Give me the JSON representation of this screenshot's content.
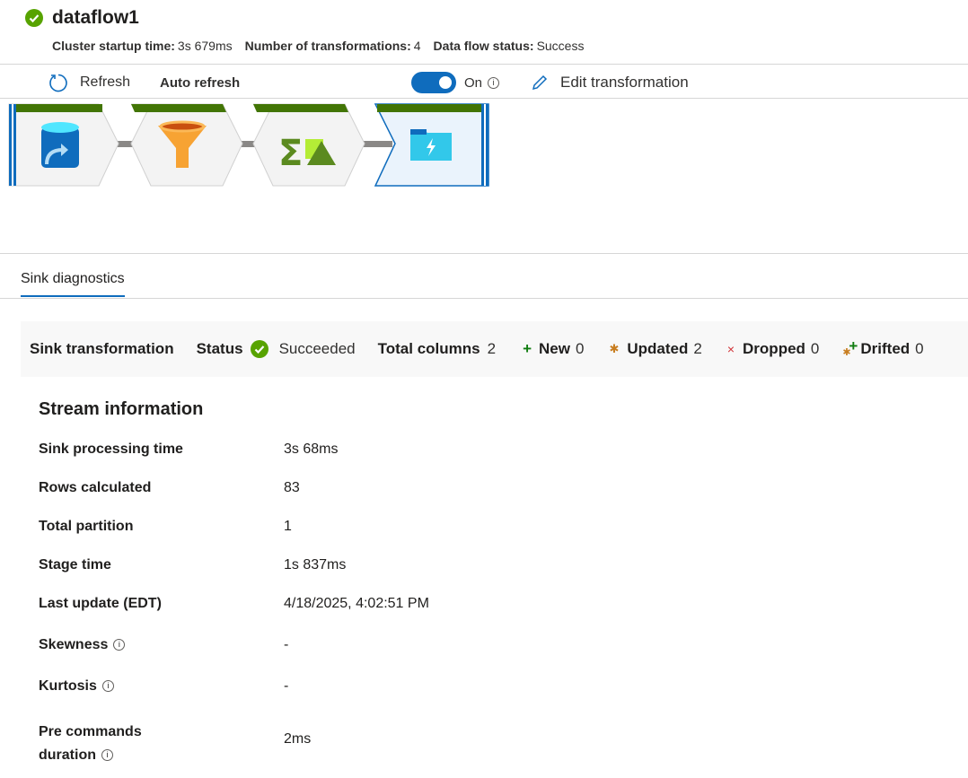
{
  "header": {
    "title": "dataflow1",
    "stats": [
      {
        "label": "Cluster startup time:",
        "value": "3s 679ms"
      },
      {
        "label": "Number of transformations:",
        "value": "4"
      },
      {
        "label": "Data flow status:",
        "value": "Success"
      }
    ]
  },
  "toolbar": {
    "refresh": "Refresh",
    "auto_refresh": "Auto refresh",
    "toggle_state": "On",
    "toggle_on": true,
    "edit": "Edit transformation"
  },
  "pipeline": {
    "nodes": [
      {
        "icon": "source-database-icon"
      },
      {
        "icon": "filter-funnel-icon"
      },
      {
        "icon": "aggregate-icon"
      },
      {
        "icon": "sink-folder-icon",
        "selected": true
      }
    ]
  },
  "tabs": [
    "Sink diagnostics"
  ],
  "summary": {
    "sink": "Sink transformation",
    "status_label": "Status",
    "status_value": "Succeeded",
    "total_label": "Total columns",
    "total_value": "2",
    "new_label": "New",
    "new_value": "0",
    "updated_label": "Updated",
    "updated_value": "2",
    "dropped_label": "Dropped",
    "dropped_value": "0",
    "drifted_label": "Drifted",
    "drifted_value": "0"
  },
  "stream": {
    "heading": "Stream information",
    "rows": [
      {
        "label": "Sink processing time",
        "value": "3s 68ms"
      },
      {
        "label": "Rows calculated",
        "value": "83"
      },
      {
        "label": "Total partition",
        "value": "1"
      },
      {
        "label": "Stage time",
        "value": "1s 837ms"
      },
      {
        "label": "Last update (EDT)",
        "value": "4/18/2025, 4:02:51 PM"
      },
      {
        "label": "Skewness",
        "value": "-"
      },
      {
        "label": "Kurtosis",
        "value": "-"
      },
      {
        "label": "Pre commands",
        "label2": "duration",
        "value": "2ms"
      }
    ]
  },
  "colors": {
    "accent": "#0f6cbd",
    "success": "#57a300",
    "node_bar": "#427505"
  }
}
